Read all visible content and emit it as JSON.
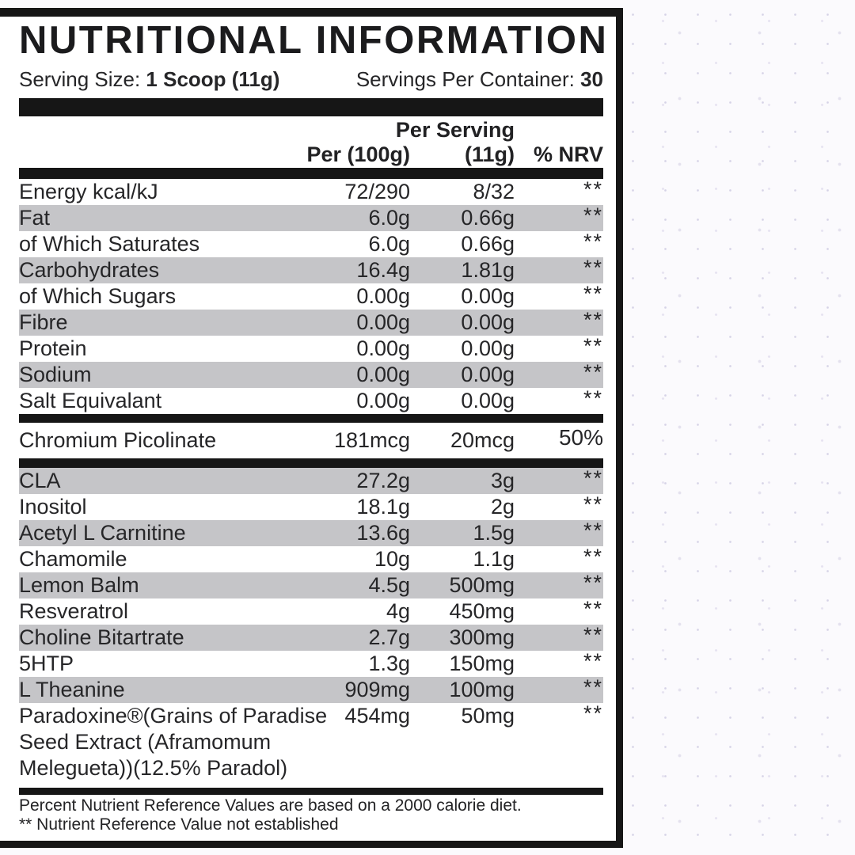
{
  "label": {
    "title": "NUTRITIONAL INFORMATION",
    "serving": {
      "size_label": "Serving Size:",
      "size_value": "1 Scoop (11g)",
      "container_label": "Servings Per Container:",
      "container_value": "30"
    },
    "table": {
      "header": {
        "per_serving_line1": "Per Serving",
        "per_100g": "Per (100g)",
        "per_serving_line2": "(11g)",
        "nrv": "% NRV"
      },
      "sections": [
        {
          "rows": [
            {
              "name": "Energy kcal/kJ",
              "per_100g": "72/290",
              "per_serving": "8/32",
              "nrv": "**",
              "shaded": false
            },
            {
              "name": "Fat",
              "per_100g": "6.0g",
              "per_serving": "0.66g",
              "nrv": "**",
              "shaded": true
            },
            {
              "name": "of Which Saturates",
              "per_100g": "6.0g",
              "per_serving": "0.66g",
              "nrv": "**",
              "shaded": false
            },
            {
              "name": "Carbohydrates",
              "per_100g": "16.4g",
              "per_serving": "1.81g",
              "nrv": "**",
              "shaded": true
            },
            {
              "name": "of Which Sugars",
              "per_100g": "0.00g",
              "per_serving": "0.00g",
              "nrv": "**",
              "shaded": false
            },
            {
              "name": "Fibre",
              "per_100g": "0.00g",
              "per_serving": "0.00g",
              "nrv": "**",
              "shaded": true
            },
            {
              "name": "Protein",
              "per_100g": "0.00g",
              "per_serving": "0.00g",
              "nrv": "**",
              "shaded": false
            },
            {
              "name": "Sodium",
              "per_100g": "0.00g",
              "per_serving": "0.00g",
              "nrv": "**",
              "shaded": true
            },
            {
              "name": "Salt Equivalant",
              "per_100g": "0.00g",
              "per_serving": "0.00g",
              "nrv": "**",
              "shaded": false
            }
          ]
        },
        {
          "rows": [
            {
              "name": "Chromium Picolinate",
              "per_100g": "181mcg",
              "per_serving": "20mcg",
              "nrv": "50%",
              "shaded": false,
              "tall": true
            }
          ]
        },
        {
          "rows": [
            {
              "name": "CLA",
              "per_100g": "27.2g",
              "per_serving": "3g",
              "nrv": "**",
              "shaded": true
            },
            {
              "name": "Inositol",
              "per_100g": "18.1g",
              "per_serving": "2g",
              "nrv": "**",
              "shaded": false
            },
            {
              "name": "Acetyl L Carnitine",
              "per_100g": "13.6g",
              "per_serving": "1.5g",
              "nrv": "**",
              "shaded": true
            },
            {
              "name": "Chamomile",
              "per_100g": "10g",
              "per_serving": "1.1g",
              "nrv": "**",
              "shaded": false
            },
            {
              "name": "Lemon Balm",
              "per_100g": "4.5g",
              "per_serving": "500mg",
              "nrv": "**",
              "shaded": true
            },
            {
              "name": "Resveratrol",
              "per_100g": "4g",
              "per_serving": "450mg",
              "nrv": "**",
              "shaded": false
            },
            {
              "name": "Choline Bitartrate",
              "per_100g": "2.7g",
              "per_serving": "300mg",
              "nrv": "**",
              "shaded": true
            },
            {
              "name": "5HTP",
              "per_100g": "1.3g",
              "per_serving": "150mg",
              "nrv": "**",
              "shaded": false
            },
            {
              "name": "L Theanine",
              "per_100g": "909mg",
              "per_serving": "100mg",
              "nrv": "**",
              "shaded": true
            },
            {
              "name": "Paradoxine®(Grains of Paradise\nSeed Extract (Aframomum\nMelegueta))(12.5% Paradol)",
              "per_100g": "454mg",
              "per_serving": "50mg",
              "nrv": "**",
              "shaded": false
            }
          ]
        }
      ]
    },
    "footnotes": {
      "line1": "Percent Nutrient Reference Values are based on a 2000 calorie diet.",
      "line2": "** Nutrient Reference Value not established"
    },
    "colors": {
      "bar_black": "#161616",
      "row_shade": "#c5c5c8",
      "text": "#262628",
      "panel_background": "#ffffff",
      "page_background": "#fbfafd"
    }
  }
}
